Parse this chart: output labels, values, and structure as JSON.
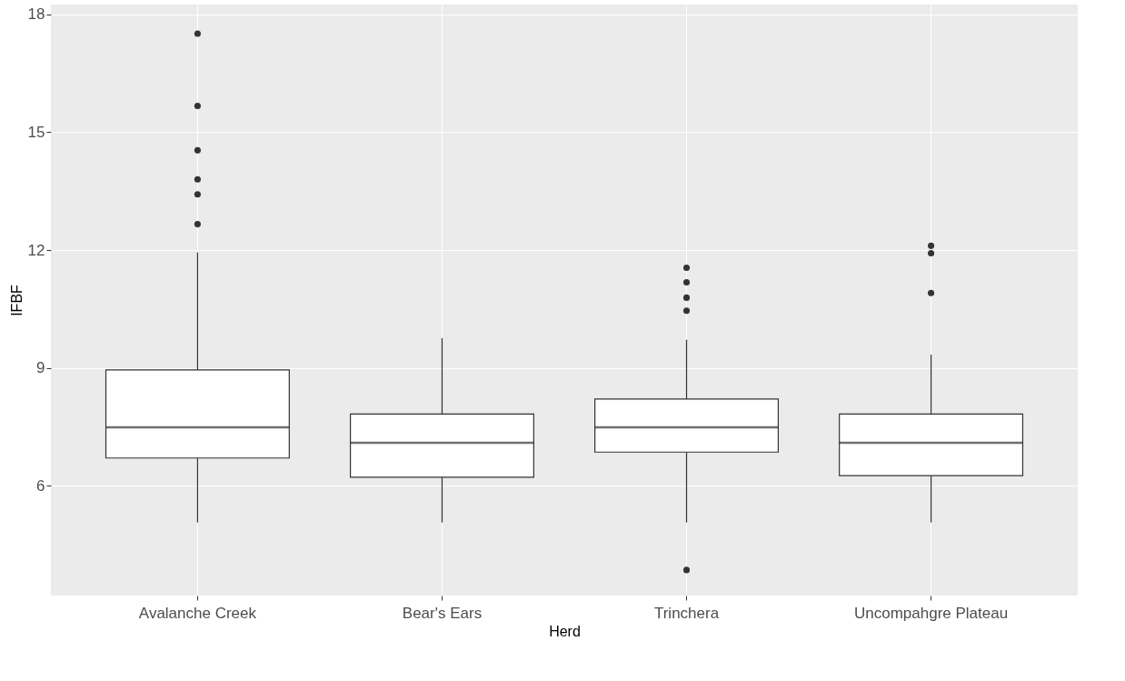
{
  "chart_data": {
    "type": "box",
    "xlabel": "Herd",
    "ylabel": "IFBF",
    "categories": [
      "Avalanche Creek",
      "Bear's Ears",
      "Trinchera",
      "Uncompahgre Plateau"
    ],
    "boxes": [
      {
        "low": 5.07,
        "q1": 6.71,
        "median": 7.49,
        "q3": 8.95,
        "high": 11.94,
        "outliers": [
          17.51,
          15.67,
          14.54,
          13.8,
          13.42,
          12.66
        ]
      },
      {
        "low": 5.07,
        "q1": 6.22,
        "median": 7.1,
        "q3": 7.83,
        "high": 9.76
      },
      {
        "low": 5.07,
        "q1": 6.86,
        "median": 7.49,
        "q3": 8.21,
        "high": 9.72,
        "outliers": [
          11.55,
          11.18,
          10.79,
          10.46,
          3.86
        ]
      },
      {
        "low": 5.07,
        "q1": 6.26,
        "median": 7.1,
        "q3": 7.83,
        "high": 9.34,
        "outliers": [
          12.11,
          11.92,
          10.91
        ]
      }
    ],
    "ylim": [
      3.21,
      18.25
    ],
    "yticks": [
      6,
      9,
      12,
      15,
      18
    ],
    "grid": true
  }
}
